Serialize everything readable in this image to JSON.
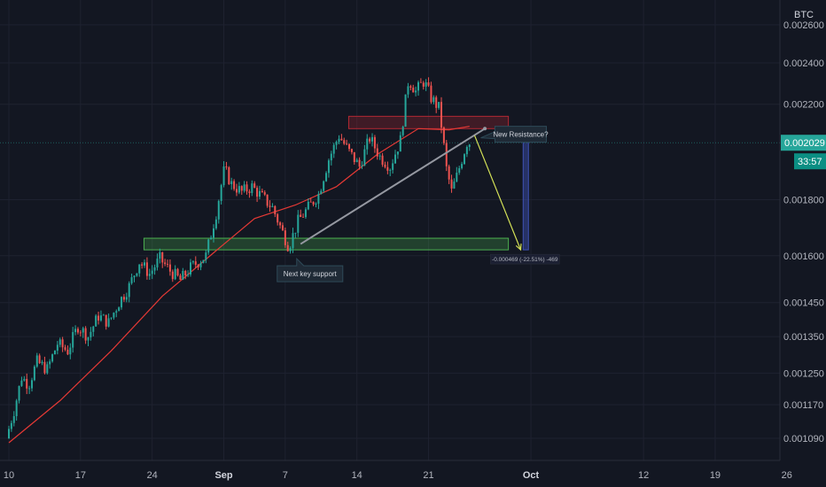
{
  "chart_data": {
    "type": "candlestick",
    "currency_label": "BTC",
    "current_price": 0.002029,
    "countdown": "33:57",
    "y_ticks": [
      {
        "value": 0.0026,
        "label": "0.002600"
      },
      {
        "value": 0.0024,
        "label": "0.002400"
      },
      {
        "value": 0.0022,
        "label": "0.002200"
      },
      {
        "value": 0.0018,
        "label": "0.001800"
      },
      {
        "value": 0.0016,
        "label": "0.001600"
      },
      {
        "value": 0.00145,
        "label": "0.001450"
      },
      {
        "value": 0.00135,
        "label": "0.001350"
      },
      {
        "value": 0.00125,
        "label": "0.001250"
      },
      {
        "value": 0.00117,
        "label": "0.001170"
      },
      {
        "value": 0.00109,
        "label": "0.001090"
      }
    ],
    "x_ticks": [
      {
        "day": 0,
        "label": "10",
        "bold": false
      },
      {
        "day": 7,
        "label": "17",
        "bold": false
      },
      {
        "day": 14,
        "label": "24",
        "bold": false
      },
      {
        "day": 21,
        "label": "Sep",
        "bold": true
      },
      {
        "day": 27,
        "label": "7",
        "bold": false
      },
      {
        "day": 34,
        "label": "14",
        "bold": false
      },
      {
        "day": 41,
        "label": "21",
        "bold": false
      },
      {
        "day": 51,
        "label": "Oct",
        "bold": true
      },
      {
        "day": 62,
        "label": "12",
        "bold": false
      },
      {
        "day": 69,
        "label": "19",
        "bold": false
      },
      {
        "day": 76,
        "label": "26",
        "bold": false
      }
    ],
    "price_path": [
      [
        0,
        0.00109
      ],
      [
        0.8,
        0.00116
      ],
      [
        1.5,
        0.00124
      ],
      [
        2.2,
        0.00122
      ],
      [
        3,
        0.00128
      ],
      [
        4,
        0.00126
      ],
      [
        5,
        0.00133
      ],
      [
        6,
        0.00131
      ],
      [
        7,
        0.00138
      ],
      [
        8,
        0.00135
      ],
      [
        9,
        0.00141
      ],
      [
        10,
        0.00139
      ],
      [
        11,
        0.00145
      ],
      [
        12,
        0.0015
      ],
      [
        13,
        0.00158
      ],
      [
        14,
        0.00154
      ],
      [
        15,
        0.00159
      ],
      [
        16,
        0.00155
      ],
      [
        17,
        0.00152
      ],
      [
        18,
        0.00156
      ],
      [
        19.5,
        0.0016
      ],
      [
        20.5,
        0.00175
      ],
      [
        21.3,
        0.00192
      ],
      [
        22,
        0.00186
      ],
      [
        23,
        0.00183
      ],
      [
        24,
        0.00185
      ],
      [
        25,
        0.00181
      ],
      [
        26,
        0.00177
      ],
      [
        27,
        0.00168
      ],
      [
        27.6,
        0.00163
      ],
      [
        28.5,
        0.00172
      ],
      [
        29.5,
        0.00177
      ],
      [
        30.5,
        0.00182
      ],
      [
        31.5,
        0.00196
      ],
      [
        32.5,
        0.00206
      ],
      [
        33.5,
        0.00199
      ],
      [
        34.5,
        0.00193
      ],
      [
        35.5,
        0.00205
      ],
      [
        36.5,
        0.00197
      ],
      [
        37.5,
        0.00193
      ],
      [
        38.5,
        0.00204
      ],
      [
        39.3,
        0.00232
      ],
      [
        40,
        0.00226
      ],
      [
        40.8,
        0.00231
      ],
      [
        41.5,
        0.00223
      ],
      [
        42.3,
        0.00218
      ],
      [
        43,
        0.00192
      ],
      [
        43.5,
        0.00183
      ],
      [
        44,
        0.00189
      ],
      [
        44.5,
        0.00196
      ],
      [
        45,
        0.00203
      ]
    ],
    "moving_average": [
      [
        0,
        0.00108
      ],
      [
        5,
        0.00118
      ],
      [
        10,
        0.00131
      ],
      [
        15,
        0.00147
      ],
      [
        20,
        0.00161
      ],
      [
        24,
        0.00173
      ],
      [
        28,
        0.00178
      ],
      [
        32,
        0.00185
      ],
      [
        36,
        0.00198
      ],
      [
        40,
        0.00209
      ],
      [
        43,
        0.002085
      ],
      [
        45,
        0.0021
      ]
    ],
    "annotations": {
      "resistance_zone": {
        "day_start": 33.2,
        "day_end": 48.8,
        "price_top": 0.002145,
        "price_bottom": 0.00209,
        "color": "#b22833"
      },
      "support_zone": {
        "day_start": 13.2,
        "day_end": 48.8,
        "price_top": 0.00166,
        "price_bottom": 0.00162,
        "color": "#4caf50"
      },
      "trendline": {
        "from": [
          28.5,
          0.00164
        ],
        "to": [
          46.5,
          0.00209
        ]
      },
      "projection_arrow": {
        "from": [
          45.5,
          0.00206
        ],
        "to": [
          50,
          0.00162
        ]
      },
      "measure_bar": {
        "day": 50.5,
        "price_top": 0.00209,
        "price_bottom": 0.00162
      },
      "resistance_label": "New Resistance?",
      "support_label": "Next key support",
      "measure_label": "-0.000469 (-22.51%) -469"
    },
    "colors": {
      "background": "#131722",
      "grid": "#1e2230",
      "up_candle": "#26a69a",
      "down_candle": "#ef5350",
      "moving_average": "#e53935",
      "price_tag": "#26a69a",
      "price_line": "#26a69a",
      "trendline": "#9598a1",
      "arrow": "#d4e157",
      "measure": "#3f51b5"
    }
  }
}
